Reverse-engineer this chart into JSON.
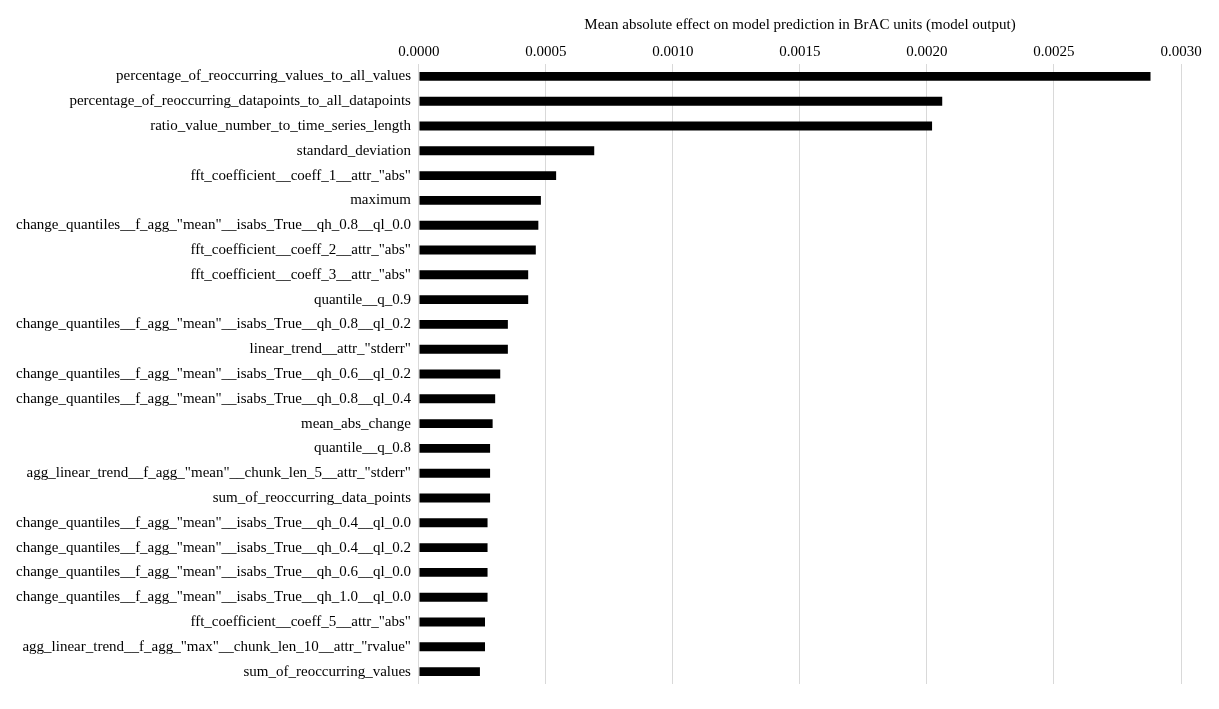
{
  "chart_data": {
    "type": "bar",
    "orientation": "horizontal",
    "xlabel": "Mean absolute effect on model prediction in BrAC units (model output)",
    "categories": [
      "percentage_of_reoccurring_values_to_all_values",
      "percentage_of_reoccurring_datapoints_to_all_datapoints",
      "ratio_value_number_to_time_series_length",
      "standard_deviation",
      "fft_coefficient__coeff_1__attr_\"abs\"",
      "maximum",
      "change_quantiles__f_agg_\"mean\"__isabs_True__qh_0.8__ql_0.0",
      "fft_coefficient__coeff_2__attr_\"abs\"",
      "fft_coefficient__coeff_3__attr_\"abs\"",
      "quantile__q_0.9",
      "change_quantiles__f_agg_\"mean\"__isabs_True__qh_0.8__ql_0.2",
      "linear_trend__attr_\"stderr\"",
      "change_quantiles__f_agg_\"mean\"__isabs_True__qh_0.6__ql_0.2",
      "change_quantiles__f_agg_\"mean\"__isabs_True__qh_0.8__ql_0.4",
      "mean_abs_change",
      "quantile__q_0.8",
      "agg_linear_trend__f_agg_\"mean\"__chunk_len_5__attr_\"stderr\"",
      "sum_of_reoccurring_data_points",
      "change_quantiles__f_agg_\"mean\"__isabs_True__qh_0.4__ql_0.0",
      "change_quantiles__f_agg_\"mean\"__isabs_True__qh_0.4__ql_0.2",
      "change_quantiles__f_agg_\"mean\"__isabs_True__qh_0.6__ql_0.0",
      "change_quantiles__f_agg_\"mean\"__isabs_True__qh_1.0__ql_0.0",
      "fft_coefficient__coeff_5__attr_\"abs\"",
      "agg_linear_trend__f_agg_\"max\"__chunk_len_10__attr_\"rvalue\"",
      "sum_of_reoccurring_values"
    ],
    "values": [
      0.00288,
      0.00206,
      0.00202,
      0.00069,
      0.00054,
      0.00048,
      0.00047,
      0.00046,
      0.00043,
      0.00043,
      0.00035,
      0.00035,
      0.00032,
      0.0003,
      0.00029,
      0.00028,
      0.00028,
      0.00028,
      0.00027,
      0.00027,
      0.00027,
      0.00027,
      0.00026,
      0.00026,
      0.00024
    ],
    "color": "#000000",
    "xlim": [
      0,
      0.003
    ],
    "xticks": [
      {
        "value": 0,
        "label": "0.0000"
      },
      {
        "value": 0.0005,
        "label": "0.0005"
      },
      {
        "value": 0.001,
        "label": "0.0010"
      },
      {
        "value": 0.0015,
        "label": "0.0015"
      },
      {
        "value": 0.002,
        "label": "0.0020"
      },
      {
        "value": 0.0025,
        "label": "0.0025"
      },
      {
        "value": 0.003,
        "label": "0.0030"
      }
    ],
    "grid": "x",
    "legend": false
  }
}
